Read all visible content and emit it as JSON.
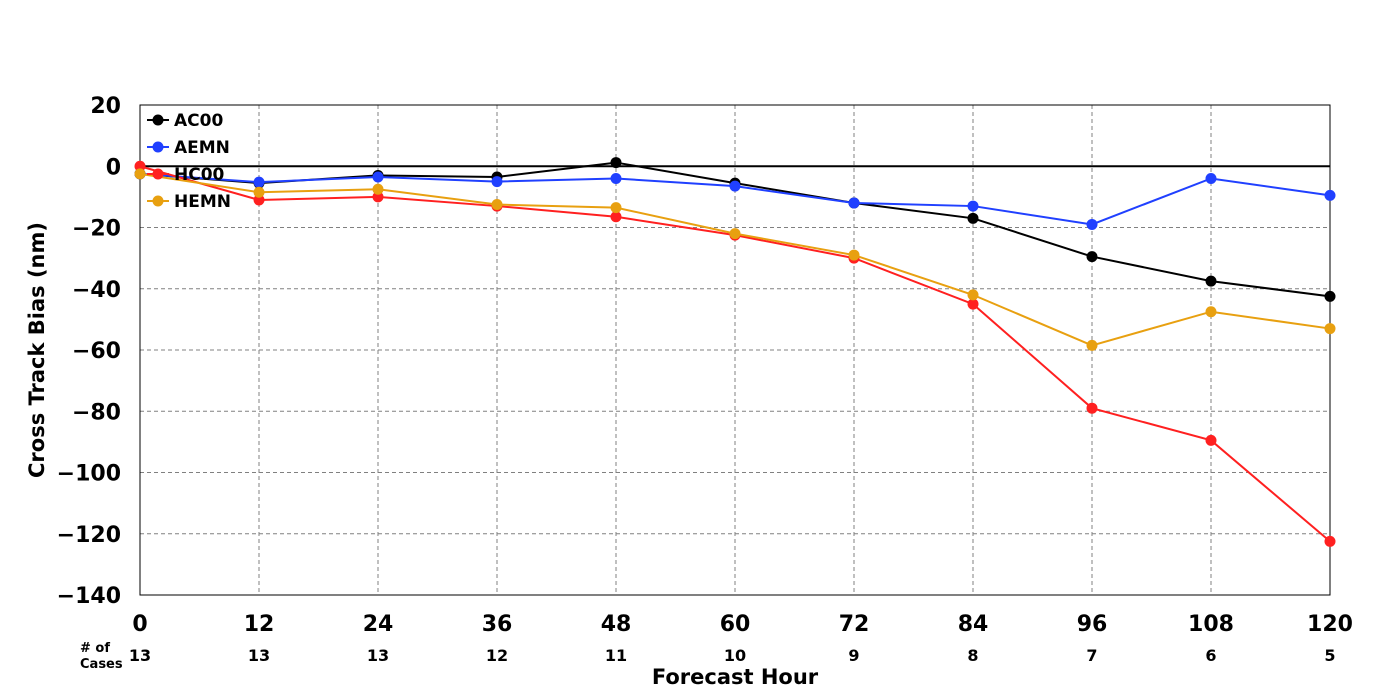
{
  "chart_data": {
    "type": "line",
    "title": "",
    "xlabel": "Forecast Hour",
    "ylabel": "Cross Track Bias (nm)",
    "xlim": [
      0,
      120
    ],
    "ylim": [
      -140,
      20
    ],
    "x": [
      0,
      12,
      24,
      36,
      48,
      60,
      72,
      84,
      96,
      108,
      120
    ],
    "x_ticks": [
      "0",
      "12",
      "24",
      "36",
      "48",
      "60",
      "72",
      "84",
      "96",
      "108",
      "120"
    ],
    "y_ticks": [
      20,
      0,
      -20,
      -40,
      -60,
      -80,
      -100,
      -120,
      -140
    ],
    "y_tick_labels": [
      "20",
      "0",
      "−20",
      "−40",
      "−60",
      "−80",
      "−100",
      "−120",
      "−140"
    ],
    "grid": true,
    "legend_position": "top-left",
    "cases_label": [
      "# of",
      "Cases"
    ],
    "cases": [
      "13",
      "13",
      "13",
      "12",
      "11",
      "10",
      "9",
      "8",
      "7",
      "6",
      "5"
    ],
    "series": [
      {
        "name": "AC00",
        "color": "#000000",
        "values": [
          -2.5,
          -5.5,
          -3,
          -3.5,
          1.2,
          -5.5,
          -12,
          -17,
          -29.5,
          -37.5,
          -42.5
        ]
      },
      {
        "name": "AEMN",
        "color": "#2040ff",
        "values": [
          -2.5,
          -5.2,
          -3.5,
          -5,
          -4,
          -6.5,
          -12,
          -13,
          -19,
          -4,
          -9.5
        ]
      },
      {
        "name": "HC00",
        "color": "#ff2020",
        "values": [
          0,
          -11,
          -10,
          -13,
          -16.5,
          -22.5,
          -30,
          -45,
          -79,
          -89.5,
          -122.5
        ]
      },
      {
        "name": "HEMN",
        "color": "#e8a010",
        "values": [
          -2.5,
          -8.5,
          -7.5,
          -12.5,
          -13.5,
          -22,
          -29,
          -42,
          -58.5,
          -47.5,
          -53
        ]
      }
    ]
  }
}
